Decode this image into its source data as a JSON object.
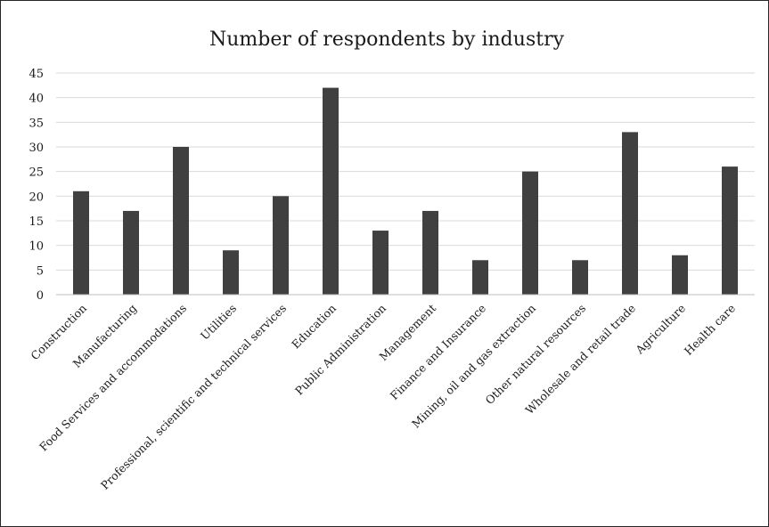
{
  "chart_data": {
    "type": "bar",
    "title": "Number of respondents by industry",
    "xlabel": "",
    "ylabel": "",
    "ylim": [
      0,
      45
    ],
    "yticks": [
      0,
      5,
      10,
      15,
      20,
      25,
      30,
      35,
      40,
      45
    ],
    "grid": true,
    "categories": [
      "Construction",
      "Manufacturing",
      "Food Services and accommodations",
      "Utilities",
      "Professional, scientific and technical services",
      "Education",
      "Public Administration",
      "Management",
      "Finance and Insurance",
      "Mining, oil and gas extraction",
      "Other natural resources",
      "Wholesale and retail trade",
      "Agriculture",
      "Health care"
    ],
    "values": [
      21,
      17,
      30,
      9,
      20,
      42,
      13,
      17,
      7,
      25,
      7,
      33,
      8,
      26
    ],
    "colors": {
      "bar": "#404040",
      "grid": "#d9d9d9",
      "axis": "#bfbfbf",
      "text": "#1a1a1a"
    }
  }
}
